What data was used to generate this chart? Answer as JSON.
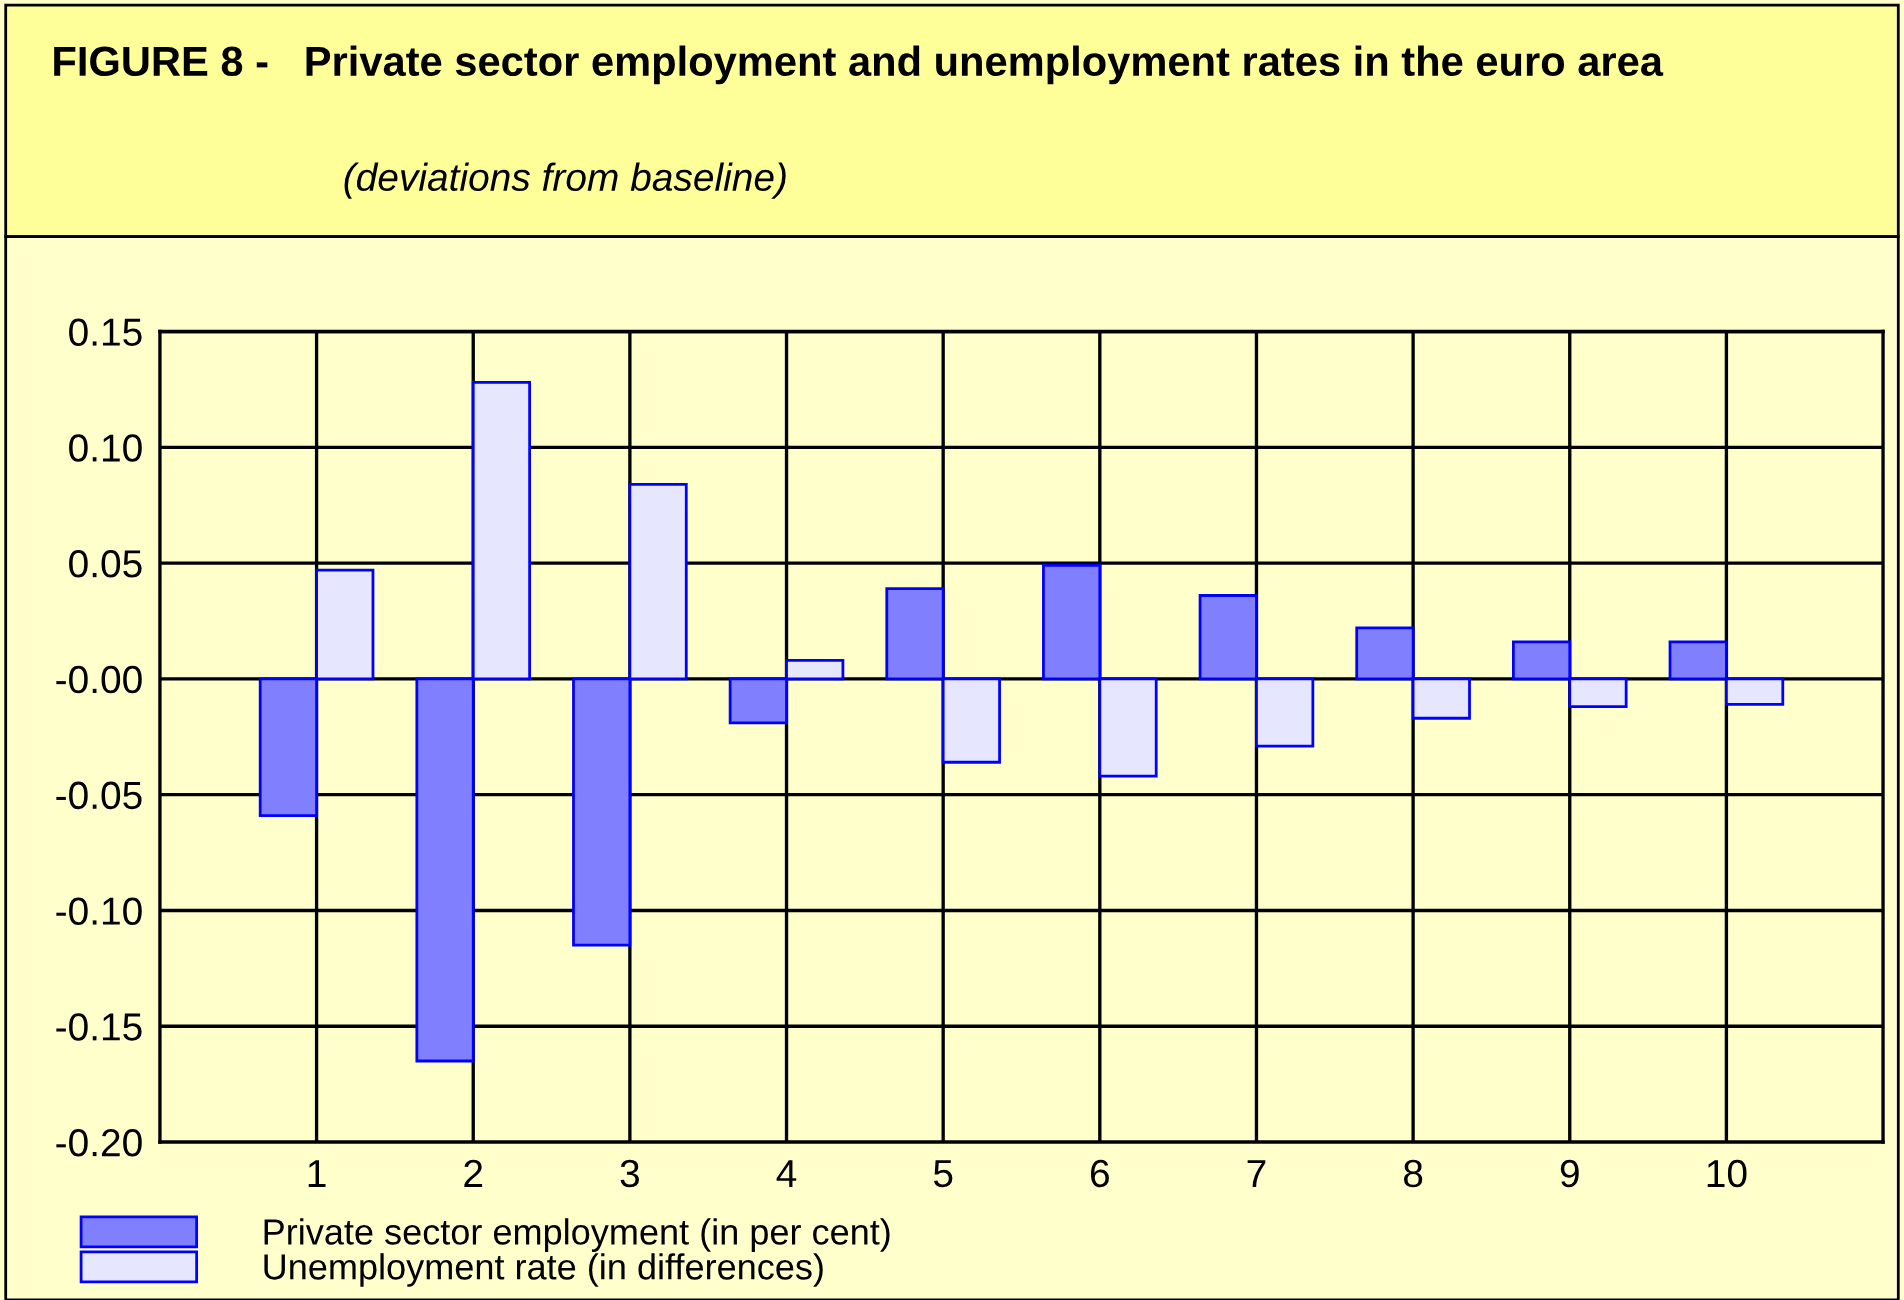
{
  "chart_data": {
    "type": "bar",
    "title": "FIGURE 8 -   Private sector employment and unemployment rates in the euro area",
    "subtitle": "(deviations from baseline)",
    "x": [
      1,
      2,
      3,
      4,
      5,
      6,
      7,
      8,
      9,
      10
    ],
    "series": [
      {
        "name": "Private sector employment (in per cent)",
        "color": "#8080ff",
        "values": [
          -0.059,
          -0.165,
          -0.115,
          -0.019,
          0.039,
          0.049,
          0.036,
          0.022,
          0.016,
          0.016
        ]
      },
      {
        "name": "Unemployment rate (in differences)",
        "color": "#e6e6ff",
        "values": [
          0.047,
          0.128,
          0.084,
          0.008,
          -0.036,
          -0.042,
          -0.029,
          -0.017,
          -0.012,
          -0.011
        ]
      }
    ],
    "xlim": [
      0,
      11
    ],
    "xticks": [
      1,
      2,
      3,
      4,
      5,
      6,
      7,
      8,
      9,
      10
    ],
    "ylim": [
      -0.2,
      0.15
    ],
    "yticks": [
      {
        "value": 0.15,
        "label": "0.15"
      },
      {
        "value": 0.1,
        "label": "0.10"
      },
      {
        "value": 0.05,
        "label": "0.05"
      },
      {
        "value": 0,
        "label": "-0.00"
      },
      {
        "value": -0.05,
        "label": "-0.05"
      },
      {
        "value": -0.1,
        "label": "-0.10"
      },
      {
        "value": -0.15,
        "label": "-0.15"
      },
      {
        "value": -0.2,
        "label": "-0.20"
      }
    ],
    "grid": true,
    "legend": "bottom left"
  }
}
